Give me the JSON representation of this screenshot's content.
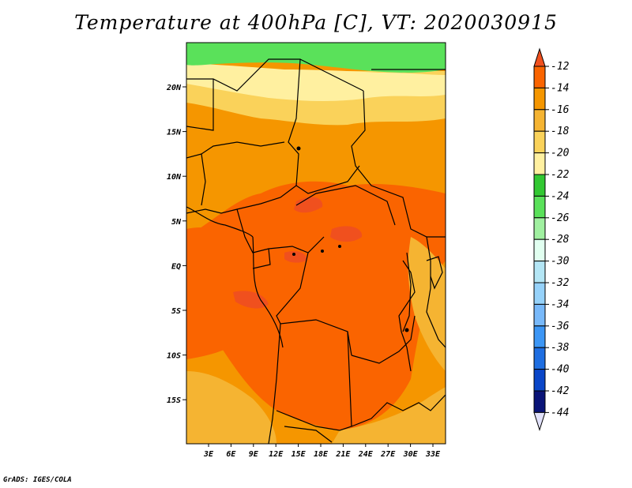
{
  "title": "Temperature at 400hPa [C], VT: 2020030915",
  "credit": "GrADS: IGES/COLA",
  "map": {
    "variable": "Temperature at 400hPa",
    "units": "C",
    "valid_time": "2020030915",
    "lon_ticks": [
      "3E",
      "6E",
      "9E",
      "12E",
      "15E",
      "18E",
      "21E",
      "24E",
      "27E",
      "30E",
      "33E"
    ],
    "lat_ticks": [
      "20N",
      "15N",
      "10N",
      "5N",
      "EQ",
      "5S",
      "10S",
      "15S"
    ]
  },
  "colorbar": {
    "labels": [
      "-12",
      "-14",
      "-16",
      "-18",
      "-20",
      "-22",
      "-24",
      "-26",
      "-28",
      "-30",
      "-32",
      "-34",
      "-36",
      "-38",
      "-40",
      "-42",
      "-44"
    ],
    "colors": [
      "#f0501e",
      "#fa6400",
      "#f59600",
      "#f5b432",
      "#fad25a",
      "#fff0a0",
      "#32c832",
      "#5ae15a",
      "#a0f0a0",
      "#e1fff0",
      "#b4e6f5",
      "#96d2fa",
      "#78b9fa",
      "#3c96f5",
      "#1e6ee1",
      "#0a46c8",
      "#0a1478",
      "#e1e1fa"
    ]
  },
  "regions": {
    "north_cool": "#5ae15a",
    "north_band": "#fff0a0",
    "north_mid": "#fad25a",
    "orange": "#f59600",
    "dark_orange": "#fa6400",
    "hot": "#f0501e",
    "light_orange": "#f5b432"
  }
}
